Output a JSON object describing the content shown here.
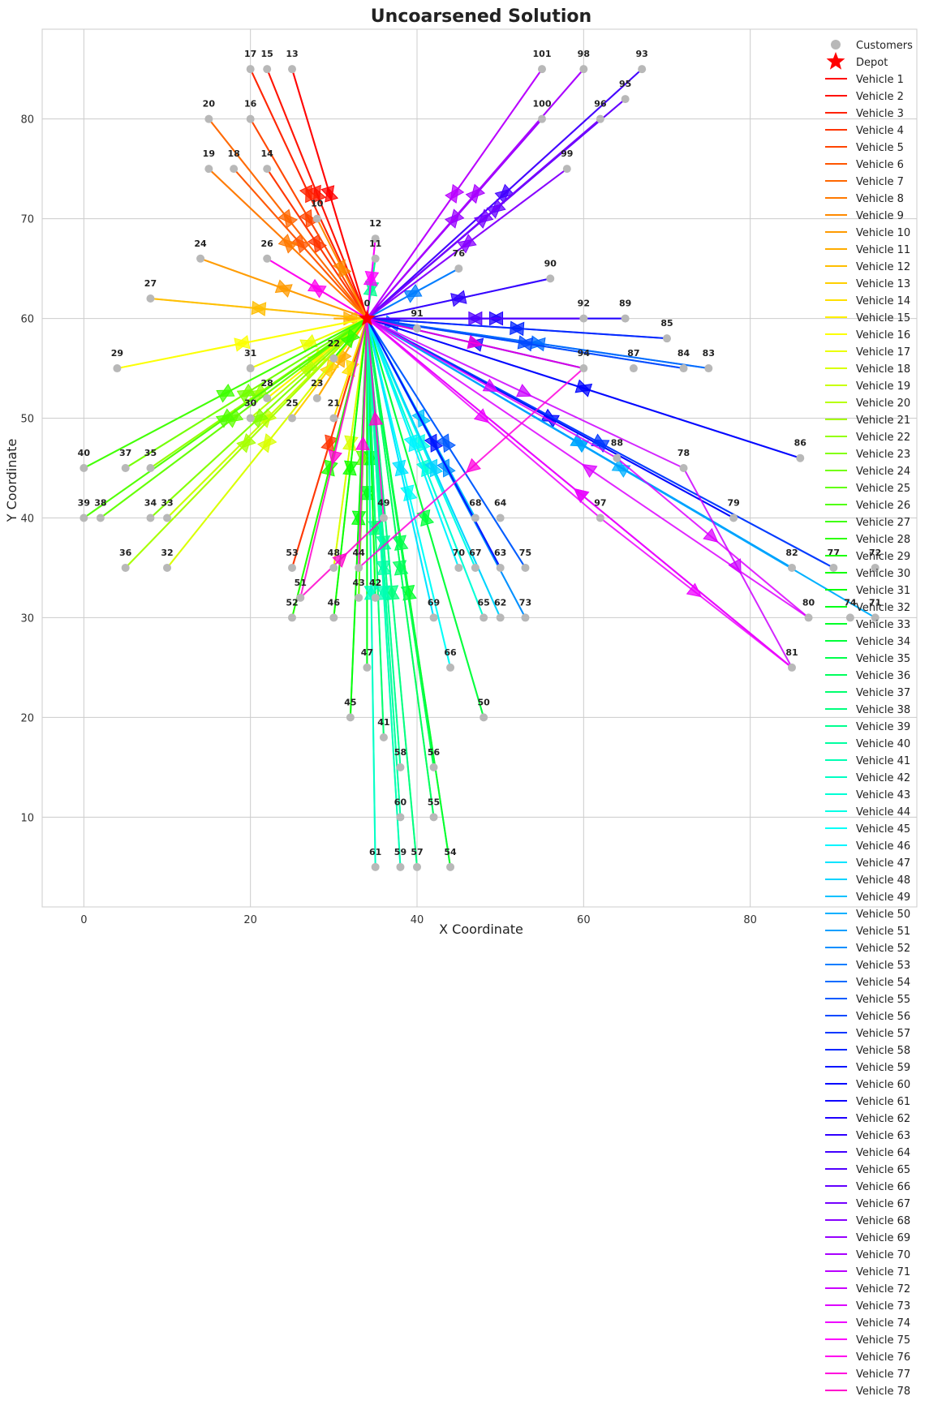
{
  "chart_data": {
    "type": "scatter",
    "title": "Uncoarsened Solution",
    "xlabel": "X Coordinate",
    "ylabel": "Y Coordinate",
    "xlim": [
      -5,
      100
    ],
    "ylim": [
      1,
      89
    ],
    "xticks": [
      0,
      20,
      40,
      60,
      80
    ],
    "yticks": [
      10,
      20,
      30,
      40,
      50,
      60,
      70,
      80
    ],
    "grid": true,
    "legend_position": "right",
    "colors": {
      "customer": "#b8b8b8",
      "depot": "#ff0000",
      "axes_edge": "#cccccc",
      "grid": "#cccccc"
    },
    "depot": {
      "x": 34,
      "y": 60,
      "label": "0",
      "legend": "Depot"
    },
    "customers_legend": "Customers",
    "customers": [
      {
        "id": "13",
        "x": 25,
        "y": 85
      },
      {
        "id": "15",
        "x": 22,
        "y": 85
      },
      {
        "id": "17",
        "x": 20,
        "y": 85
      },
      {
        "id": "16",
        "x": 20,
        "y": 80
      },
      {
        "id": "20",
        "x": 15,
        "y": 80
      },
      {
        "id": "14",
        "x": 22,
        "y": 75
      },
      {
        "id": "18",
        "x": 18,
        "y": 75
      },
      {
        "id": "19",
        "x": 15,
        "y": 75
      },
      {
        "id": "10",
        "x": 28,
        "y": 70
      },
      {
        "id": "12",
        "x": 35,
        "y": 68
      },
      {
        "id": "11",
        "x": 35,
        "y": 66
      },
      {
        "id": "24",
        "x": 14,
        "y": 66
      },
      {
        "id": "26",
        "x": 22,
        "y": 66
      },
      {
        "id": "27",
        "x": 8,
        "y": 62
      },
      {
        "id": "29",
        "x": 4,
        "y": 55
      },
      {
        "id": "31",
        "x": 20,
        "y": 55
      },
      {
        "id": "30",
        "x": 20,
        "y": 50
      },
      {
        "id": "25",
        "x": 25,
        "y": 50
      },
      {
        "id": "28",
        "x": 22,
        "y": 52
      },
      {
        "id": "23",
        "x": 28,
        "y": 52
      },
      {
        "id": "21",
        "x": 30,
        "y": 50
      },
      {
        "id": "22",
        "x": 30,
        "y": 56
      },
      {
        "id": "40",
        "x": 0,
        "y": 45
      },
      {
        "id": "37",
        "x": 5,
        "y": 45
      },
      {
        "id": "35",
        "x": 8,
        "y": 45
      },
      {
        "id": "39",
        "x": 0,
        "y": 40
      },
      {
        "id": "38",
        "x": 2,
        "y": 40
      },
      {
        "id": "34",
        "x": 8,
        "y": 40
      },
      {
        "id": "33",
        "x": 10,
        "y": 40
      },
      {
        "id": "36",
        "x": 5,
        "y": 35
      },
      {
        "id": "32",
        "x": 10,
        "y": 35
      },
      {
        "id": "53",
        "x": 25,
        "y": 35
      },
      {
        "id": "51",
        "x": 26,
        "y": 32
      },
      {
        "id": "52",
        "x": 25,
        "y": 30
      },
      {
        "id": "48",
        "x": 30,
        "y": 35
      },
      {
        "id": "44",
        "x": 33,
        "y": 35
      },
      {
        "id": "46",
        "x": 30,
        "y": 30
      },
      {
        "id": "43",
        "x": 33,
        "y": 32
      },
      {
        "id": "42",
        "x": 35,
        "y": 32
      },
      {
        "id": "49",
        "x": 36,
        "y": 40
      },
      {
        "id": "47",
        "x": 34,
        "y": 25
      },
      {
        "id": "45",
        "x": 32,
        "y": 20
      },
      {
        "id": "41",
        "x": 36,
        "y": 18
      },
      {
        "id": "50",
        "x": 48,
        "y": 20
      },
      {
        "id": "58",
        "x": 38,
        "y": 15
      },
      {
        "id": "56",
        "x": 42,
        "y": 15
      },
      {
        "id": "60",
        "x": 38,
        "y": 10
      },
      {
        "id": "55",
        "x": 42,
        "y": 10
      },
      {
        "id": "61",
        "x": 35,
        "y": 5
      },
      {
        "id": "59",
        "x": 38,
        "y": 5
      },
      {
        "id": "57",
        "x": 40,
        "y": 5
      },
      {
        "id": "54",
        "x": 44,
        "y": 5
      },
      {
        "id": "68",
        "x": 47,
        "y": 40
      },
      {
        "id": "64",
        "x": 50,
        "y": 40
      },
      {
        "id": "70",
        "x": 45,
        "y": 35
      },
      {
        "id": "67",
        "x": 47,
        "y": 35
      },
      {
        "id": "63",
        "x": 50,
        "y": 35
      },
      {
        "id": "75",
        "x": 53,
        "y": 35
      },
      {
        "id": "69",
        "x": 42,
        "y": 30
      },
      {
        "id": "65",
        "x": 48,
        "y": 30
      },
      {
        "id": "62",
        "x": 50,
        "y": 30
      },
      {
        "id": "73",
        "x": 53,
        "y": 30
      },
      {
        "id": "66",
        "x": 44,
        "y": 25
      },
      {
        "id": "101",
        "x": 55,
        "y": 85
      },
      {
        "id": "98",
        "x": 60,
        "y": 85
      },
      {
        "id": "93",
        "x": 67,
        "y": 85
      },
      {
        "id": "95",
        "x": 65,
        "y": 82
      },
      {
        "id": "96",
        "x": 62,
        "y": 80
      },
      {
        "id": "100",
        "x": 55,
        "y": 80
      },
      {
        "id": "99",
        "x": 58,
        "y": 75
      },
      {
        "id": "76",
        "x": 45,
        "y": 65
      },
      {
        "id": "90",
        "x": 56,
        "y": 64
      },
      {
        "id": "92",
        "x": 60,
        "y": 60
      },
      {
        "id": "89",
        "x": 65,
        "y": 60
      },
      {
        "id": "85",
        "x": 70,
        "y": 58
      },
      {
        "id": "94",
        "x": 60,
        "y": 55
      },
      {
        "id": "87",
        "x": 66,
        "y": 55
      },
      {
        "id": "84",
        "x": 72,
        "y": 55
      },
      {
        "id": "83",
        "x": 75,
        "y": 55
      },
      {
        "id": "91",
        "x": 40,
        "y": 59
      },
      {
        "id": "88",
        "x": 64,
        "y": 46
      },
      {
        "id": "78",
        "x": 72,
        "y": 45
      },
      {
        "id": "86",
        "x": 86,
        "y": 46
      },
      {
        "id": "97",
        "x": 62,
        "y": 40
      },
      {
        "id": "79",
        "x": 78,
        "y": 40
      },
      {
        "id": "82",
        "x": 85,
        "y": 35
      },
      {
        "id": "77",
        "x": 90,
        "y": 35
      },
      {
        "id": "72",
        "x": 95,
        "y": 35
      },
      {
        "id": "80",
        "x": 87,
        "y": 30
      },
      {
        "id": "74",
        "x": 92,
        "y": 30
      },
      {
        "id": "71",
        "x": 95,
        "y": 30
      },
      {
        "id": "81",
        "x": 85,
        "y": 25
      }
    ],
    "series": [
      {
        "name": "Vehicle 1",
        "route": [
          "25,85"
        ]
      },
      {
        "name": "Vehicle 2",
        "route": [
          "22,85"
        ]
      },
      {
        "name": "Vehicle 3",
        "route": [
          "20,85"
        ]
      },
      {
        "name": "Vehicle 4",
        "route": [
          "22,75"
        ]
      },
      {
        "name": "Vehicle 5",
        "route": [
          "20,80"
        ]
      },
      {
        "name": "Vehicle 6",
        "route": [
          "18,75"
        ]
      },
      {
        "name": "Vehicle 7",
        "route": [
          "15,80"
        ]
      },
      {
        "name": "Vehicle 8",
        "route": [
          "15,75"
        ]
      },
      {
        "name": "Vehicle 9",
        "route": [
          "28,70"
        ]
      },
      {
        "name": "Vehicle 10",
        "route": [
          "14,66"
        ]
      },
      {
        "name": "Vehicle 11",
        "route": [
          "30,60"
        ]
      },
      {
        "name": "Vehicle 12",
        "route": [
          "8,62"
        ]
      },
      {
        "name": "Vehicle 13",
        "route": [
          "25,50"
        ]
      },
      {
        "name": "Vehicle 14",
        "route": [
          "30,50"
        ]
      },
      {
        "name": "Vehicle 15",
        "route": [
          "22,52"
        ]
      },
      {
        "name": "Vehicle 16",
        "route": [
          "4,55"
        ]
      },
      {
        "name": "Vehicle 17",
        "route": [
          "20,55"
        ]
      },
      {
        "name": "Vehicle 18",
        "route": [
          "10,35"
        ]
      },
      {
        "name": "Vehicle 19",
        "route": [
          "10,40"
        ]
      },
      {
        "name": "Vehicle 20",
        "route": [
          "20,50"
        ]
      },
      {
        "name": "Vehicle 21",
        "route": [
          "5,35"
        ]
      },
      {
        "name": "Vehicle 22",
        "route": [
          "8,45"
        ]
      },
      {
        "name": "Vehicle 23",
        "route": [
          "8,40"
        ]
      },
      {
        "name": "Vehicle 24",
        "route": [
          "5,45"
        ]
      },
      {
        "name": "Vehicle 25",
        "route": [
          "2,40"
        ]
      },
      {
        "name": "Vehicle 26",
        "route": [
          "0,40"
        ]
      },
      {
        "name": "Vehicle 27",
        "route": [
          "0,45"
        ]
      },
      {
        "name": "Vehicle 28",
        "route": [
          "30,56"
        ]
      },
      {
        "name": "Vehicle 29",
        "route": [
          "25,30"
        ]
      },
      {
        "name": "Vehicle 30",
        "route": [
          "30,30"
        ]
      },
      {
        "name": "Vehicle 31",
        "route": [
          "32,20"
        ]
      },
      {
        "name": "Vehicle 32",
        "route": [
          "34,25"
        ]
      },
      {
        "name": "Vehicle 33",
        "route": [
          "44,5"
        ]
      },
      {
        "name": "Vehicle 34",
        "route": [
          "48,20"
        ]
      },
      {
        "name": "Vehicle 35",
        "route": [
          "42,15"
        ]
      },
      {
        "name": "Vehicle 36",
        "route": [
          "42,10"
        ]
      },
      {
        "name": "Vehicle 37",
        "route": [
          "36,18"
        ]
      },
      {
        "name": "Vehicle 38",
        "route": [
          "40,5"
        ]
      },
      {
        "name": "Vehicle 39",
        "route": [
          "38,15"
        ]
      },
      {
        "name": "Vehicle 40",
        "route": [
          "38,10"
        ]
      },
      {
        "name": "Vehicle 41",
        "route": [
          "38,5"
        ]
      },
      {
        "name": "Vehicle 42",
        "route": [
          "35,5"
        ]
      },
      {
        "name": "Vehicle 43",
        "route": [
          "48,30"
        ]
      },
      {
        "name": "Vehicle 44",
        "route": [
          "47,35"
        ]
      },
      {
        "name": "Vehicle 45",
        "route": [
          "44,25"
        ]
      },
      {
        "name": "Vehicle 46",
        "route": [
          "45,35"
        ]
      },
      {
        "name": "Vehicle 47",
        "route": [
          "42,30"
        ]
      },
      {
        "name": "Vehicle 48",
        "route": [
          "50,30"
        ]
      },
      {
        "name": "Vehicle 49",
        "route": [
          "47,40"
        ]
      },
      {
        "name": "Vehicle 50",
        "route": [
          "95,30"
        ]
      },
      {
        "name": "Vehicle 51",
        "route": [
          "85,35"
        ]
      },
      {
        "name": "Vehicle 52",
        "route": [
          "53,30"
        ]
      },
      {
        "name": "Vehicle 53",
        "route": [
          "45,65"
        ]
      },
      {
        "name": "Vehicle 54",
        "route": [
          "75,55"
        ]
      },
      {
        "name": "Vehicle 55",
        "route": [
          "53,35"
        ]
      },
      {
        "name": "Vehicle 56",
        "route": [
          "72,55"
        ]
      },
      {
        "name": "Vehicle 57",
        "route": [
          "90,35"
        ]
      },
      {
        "name": "Vehicle 58",
        "route": [
          "70,58"
        ]
      },
      {
        "name": "Vehicle 59",
        "route": [
          "50,35"
        ]
      },
      {
        "name": "Vehicle 60",
        "route": [
          "86,46"
        ]
      },
      {
        "name": "Vehicle 61",
        "route": [
          "60,55"
        ]
      },
      {
        "name": "Vehicle 62",
        "route": [
          "65,60"
        ]
      },
      {
        "name": "Vehicle 63",
        "route": [
          "56,64"
        ]
      },
      {
        "name": "Vehicle 64",
        "route": [
          "67,85"
        ]
      },
      {
        "name": "Vehicle 65",
        "route": [
          "60,60"
        ]
      },
      {
        "name": "Vehicle 66",
        "route": [
          "65,82"
        ]
      },
      {
        "name": "Vehicle 67",
        "route": [
          "62,80"
        ]
      },
      {
        "name": "Vehicle 68",
        "route": [
          "58,75"
        ]
      },
      {
        "name": "Vehicle 69",
        "route": [
          "55,80"
        ]
      },
      {
        "name": "Vehicle 70",
        "route": [
          "60,85"
        ]
      },
      {
        "name": "Vehicle 71",
        "route": [
          "55,85"
        ]
      },
      {
        "name": "Vehicle 72",
        "route": [
          "72,45",
          "85,25"
        ]
      },
      {
        "name": "Vehicle 73",
        "route": [
          "64,46",
          "87,30"
        ]
      },
      {
        "name": "Vehicle 74",
        "route": [
          "62,40",
          "85,25"
        ]
      },
      {
        "name": "Vehicle 75",
        "route": [
          "35,68"
        ]
      },
      {
        "name": "Vehicle 76",
        "route": [
          "22,66"
        ]
      },
      {
        "name": "Vehicle 77",
        "route": [
          "60,55",
          "33,35"
        ]
      },
      {
        "name": "Vehicle 78",
        "route": [
          "26,32",
          "36,40"
        ]
      }
    ],
    "extra_series_visible_only_as_lines": [
      {
        "route": [
          "25,35"
        ]
      },
      {
        "route": [
          "28,52"
        ]
      },
      {
        "route": [
          "30,35"
        ]
      },
      {
        "route": [
          "33,32"
        ]
      },
      {
        "route": [
          "35,32"
        ]
      },
      {
        "route": [
          "35,66"
        ]
      },
      {
        "route": [
          "85,35"
        ]
      },
      {
        "route": [
          "40,59"
        ]
      },
      {
        "route": [
          "78,40"
        ]
      }
    ]
  }
}
